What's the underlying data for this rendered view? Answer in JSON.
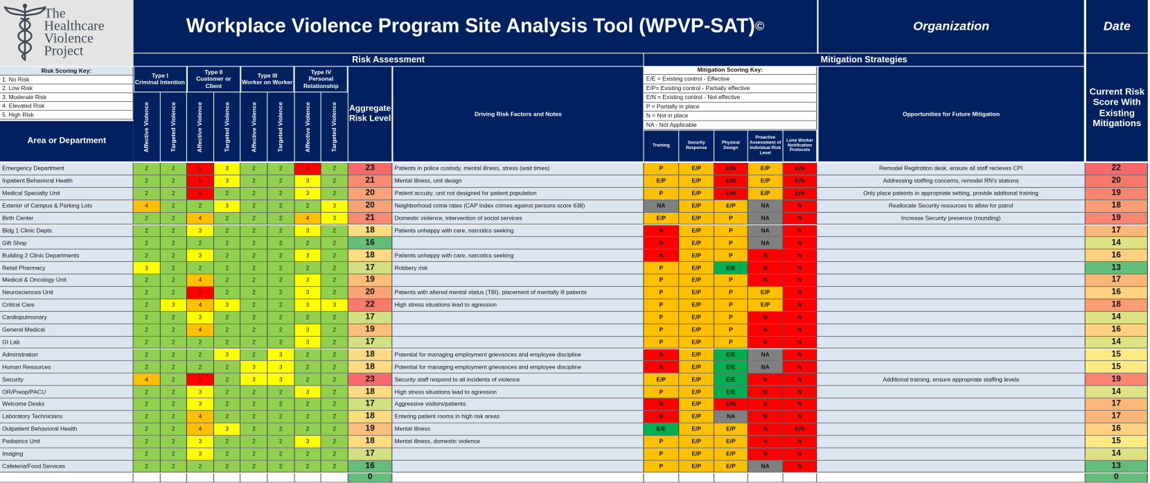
{
  "header": {
    "logo_text": [
      "The",
      "Healthcare",
      "Violence",
      "Project"
    ],
    "title": "Workplace Violence Program Site Analysis Tool (WPVP-SAT)",
    "copyright": "©",
    "organization": "Organization",
    "date": "Date"
  },
  "sections": {
    "risk_assessment": "Risk Assessment",
    "mitigation_strategies": "Mitigation Strategies"
  },
  "risk_key": {
    "title": "Risk Scoring Key:",
    "items": [
      "1. No Risk",
      "2. Low Risk",
      "3. Moderate Risk",
      "4. Elevated Risk",
      "5. High Risk"
    ]
  },
  "mitigation_key": {
    "title": "Mitigation Scoring Key:",
    "items": [
      "E/E = Existing control - Effective",
      "E/P= Existing control - Partially  effective",
      "E/N = Existing control - Not  effective",
      "P = Partially in place",
      "N = Not in place",
      "NA - Not Applicable"
    ]
  },
  "columns": {
    "area": "Area or Department",
    "types": [
      {
        "name": "Type I",
        "desc": "Criminal Intention"
      },
      {
        "name": "Type II",
        "desc": "Customer or Client"
      },
      {
        "name": "Type III",
        "desc": "Worker on Worker"
      },
      {
        "name": "Type IV",
        "desc": "Personal Relationship"
      }
    ],
    "subtypes": [
      "Affective Violence",
      "Targeted Violence"
    ],
    "aggregate": "Aggregate Risk Level",
    "notes": "Driving Risk Factors and Notes",
    "mitigation": [
      "Training",
      "Security Response",
      "Physical Design",
      "Proactive Assessment of Individual Risk Level",
      "Lone Worker Notification Protocols"
    ],
    "opportunities": "Opportunities for Future Mitigation",
    "current": "Current Risk Score With Existing Mitigations"
  },
  "rows": [
    {
      "area": "Emergency Department",
      "scores": [
        2,
        2,
        5,
        3,
        2,
        2,
        5,
        2
      ],
      "aggregate": 23,
      "notes": "Patients in police custody, mental illness, stress (wait times)",
      "mitigation": [
        "P",
        "E/P",
        "E/N",
        "E/P",
        "E/N"
      ],
      "opportunities": "Remodel Regitration desk, ensure all staff recieves CPI",
      "current": 22
    },
    {
      "area": "Inpatient Behavioral Health",
      "scores": [
        2,
        2,
        5,
        3,
        2,
        2,
        3,
        2
      ],
      "aggregate": 21,
      "notes": "Mental illness, unit design",
      "mitigation": [
        "E/P",
        "E/P",
        "E/N",
        "E/P",
        "E/N"
      ],
      "opportunities": "Addressing staffing concerns, remodel RN's stations",
      "current": 20
    },
    {
      "area": "Medical Specialty Unit",
      "scores": [
        2,
        2,
        5,
        2,
        2,
        2,
        3,
        2
      ],
      "aggregate": 20,
      "notes": "Patient accuity, unit not designed for patient population",
      "mitigation": [
        "P",
        "E/P",
        "E/N",
        "E/P",
        "E/N"
      ],
      "opportunities": "Only place pateints in appropriate setting, provide additonal training",
      "current": 19
    },
    {
      "area": "Exterior of Campus & Parking Lots",
      "scores": [
        4,
        2,
        2,
        3,
        2,
        2,
        2,
        3
      ],
      "aggregate": 20,
      "notes": "Neighborhood crime rates (CAP Index crimes against persons score 638)",
      "mitigation": [
        "NA",
        "E/P",
        "E/P",
        "NA",
        "N"
      ],
      "opportunities": "Reallocate Security resources to allow for patrol",
      "current": 18
    },
    {
      "area": "Birth Center",
      "scores": [
        2,
        2,
        4,
        2,
        2,
        2,
        4,
        3
      ],
      "aggregate": 21,
      "notes": "Domestic violence, intervention of social services",
      "mitigation": [
        "E/P",
        "E/P",
        "P",
        "NA",
        "N"
      ],
      "opportunities": "Increase Security presence (rounding)",
      "current": 19
    },
    {
      "area": "Bldg 1 Clinic Depts",
      "scores": [
        2,
        2,
        3,
        2,
        2,
        2,
        3,
        2
      ],
      "aggregate": 18,
      "notes": "Patients unhappy with care, narcotics seeking",
      "mitigation": [
        "N",
        "E/P",
        "P",
        "NA",
        "N"
      ],
      "current": 17
    },
    {
      "area": "Gift Shop",
      "scores": [
        2,
        2,
        2,
        2,
        2,
        2,
        2,
        2
      ],
      "aggregate": 16,
      "mitigation": [
        "N",
        "E/P",
        "P",
        "NA",
        "N"
      ],
      "current": 14
    },
    {
      "area": "Building 2 Clinic Departments",
      "scores": [
        2,
        2,
        3,
        2,
        2,
        2,
        3,
        2
      ],
      "aggregate": 18,
      "notes": "Patients unhappy with care, narcotics seeking",
      "mitigation": [
        "N",
        "E/P",
        "P",
        "N",
        "N"
      ],
      "current": 16
    },
    {
      "area": "Retail Pharmacy",
      "scores": [
        3,
        2,
        2,
        2,
        2,
        2,
        2,
        2
      ],
      "aggregate": 17,
      "notes": "Robbery risk",
      "mitigation": [
        "P",
        "E/P",
        "E/E",
        "N",
        "N"
      ],
      "current": 13
    },
    {
      "area": "Medical & Oncology Unit",
      "scores": [
        2,
        2,
        4,
        2,
        2,
        2,
        3,
        2
      ],
      "aggregate": 19,
      "mitigation": [
        "P",
        "E/P",
        "P",
        "N",
        "N"
      ],
      "current": 17
    },
    {
      "area": "Neurosciences Unit",
      "scores": [
        2,
        2,
        5,
        2,
        2,
        2,
        3,
        2
      ],
      "aggregate": 20,
      "notes": "Patients with altered mental status (TBI), placement of mentally ill patients",
      "mitigation": [
        "P",
        "E/P",
        "P",
        "E/P",
        "N"
      ],
      "current": 16
    },
    {
      "area": "Critical Care",
      "scores": [
        2,
        3,
        4,
        3,
        2,
        2,
        3,
        3
      ],
      "aggregate": 22,
      "notes": "High stress situations lead to agression",
      "mitigation": [
        "P",
        "E/P",
        "P",
        "E/P",
        "N"
      ],
      "current": 18
    },
    {
      "area": "Cardiopulmonary",
      "scores": [
        2,
        2,
        3,
        2,
        2,
        2,
        2,
        2
      ],
      "aggregate": 17,
      "mitigation": [
        "P",
        "E/P",
        "P",
        "N",
        "N"
      ],
      "current": 14
    },
    {
      "area": "General Medical",
      "scores": [
        2,
        2,
        4,
        2,
        2,
        2,
        3,
        2
      ],
      "aggregate": 19,
      "mitigation": [
        "P",
        "E/P",
        "P",
        "N",
        "N"
      ],
      "current": 16
    },
    {
      "area": "GI Lab",
      "scores": [
        2,
        2,
        2,
        2,
        2,
        2,
        3,
        2
      ],
      "aggregate": 17,
      "mitigation": [
        "P",
        "E/P",
        "P",
        "N",
        "N"
      ],
      "current": 14
    },
    {
      "area": "Adminstration",
      "scores": [
        2,
        2,
        2,
        3,
        2,
        3,
        2,
        2
      ],
      "aggregate": 18,
      "notes": "Potential for managing employment grievances and employee discipline",
      "mitigation": [
        "N",
        "E/P",
        "E/E",
        "NA",
        "N"
      ],
      "current": 15
    },
    {
      "area": "Human Resources",
      "scores": [
        2,
        2,
        2,
        2,
        3,
        3,
        2,
        2
      ],
      "aggregate": 18,
      "notes": "Potential for managing employment grievances and employee discipline",
      "mitigation": [
        "N",
        "E/P",
        "E/E",
        "NA",
        "N"
      ],
      "current": 15
    },
    {
      "area": "Security",
      "scores": [
        4,
        2,
        5,
        2,
        3,
        3,
        2,
        2
      ],
      "aggregate": 23,
      "notes": "Security staff respond to all incidents of violence",
      "mitigation": [
        "E/P",
        "E/P",
        "E/E",
        "N",
        "N"
      ],
      "opportunities": "Additional training, ensure appropriate staffing levels",
      "current": 19
    },
    {
      "area": "OR/Preop/PACU",
      "scores": [
        2,
        2,
        3,
        2,
        2,
        2,
        3,
        2
      ],
      "aggregate": 18,
      "notes": "High stress situations lead to agression",
      "mitigation": [
        "P",
        "E/P",
        "E/E",
        "N",
        "N"
      ],
      "current": 14
    },
    {
      "area": "Welcome Desks",
      "scores": [
        2,
        2,
        3,
        2,
        2,
        2,
        2,
        2
      ],
      "aggregate": 17,
      "notes": "Aggressive visitors/patients",
      "mitigation": [
        "N",
        "E/P",
        "E/N",
        "N",
        "N"
      ],
      "current": 17
    },
    {
      "area": "Laboratory Technicians",
      "scores": [
        2,
        2,
        4,
        2,
        2,
        2,
        2,
        2
      ],
      "aggregate": 18,
      "notes": "Entering patient rooms in high risk areas",
      "mitigation": [
        "N",
        "E/P",
        "NA",
        "N",
        "N"
      ],
      "current": 17
    },
    {
      "area": "Outpatient Behavioral Health",
      "scores": [
        2,
        2,
        4,
        3,
        2,
        2,
        2,
        2
      ],
      "aggregate": 19,
      "notes": "Mental illness",
      "mitigation": [
        "E/E",
        "E/P",
        "E/P",
        "N",
        "E/N"
      ],
      "current": 16
    },
    {
      "area": "Pediatrics Unit",
      "scores": [
        2,
        2,
        3,
        2,
        2,
        2,
        3,
        2
      ],
      "aggregate": 18,
      "notes": "Mental illness, domestic violence",
      "mitigation": [
        "P",
        "E/P",
        "E/P",
        "N",
        "N"
      ],
      "current": 15
    },
    {
      "area": "Imaging",
      "scores": [
        2,
        2,
        3,
        2,
        2,
        2,
        2,
        2
      ],
      "aggregate": 17,
      "mitigation": [
        "P",
        "E/P",
        "E/P",
        "N",
        "N"
      ],
      "current": 14
    },
    {
      "area": "Cafeteria/Food Services",
      "scores": [
        2,
        2,
        2,
        2,
        2,
        2,
        2,
        2
      ],
      "aggregate": 16,
      "mitigation": [
        "P",
        "E/P",
        "E/P",
        "NA",
        "N"
      ],
      "current": 13
    }
  ],
  "totals": {
    "aggregate": 0,
    "current": 0
  },
  "colors": {
    "risk": {
      "2": "#92d050",
      "3": "#ffff00",
      "4": "#ffc000",
      "5": "#ff0000"
    },
    "mitigation": {
      "P": "#ffc000",
      "E/P": "#ffc000",
      "E/N": "#ff0000",
      "N": "#ff0000",
      "NA": "#808080",
      "E/E": "#00b050"
    },
    "aggregate": {
      "0": "#63be7b",
      "16": "#63be7b",
      "17": "#d3e082",
      "18": "#fedb81",
      "19": "#fcbf7b",
      "20": "#fba276",
      "21": "#f98971",
      "22": "#f8796e",
      "23": "#f8696b"
    },
    "current": {
      "0": "#63be7b",
      "13": "#63be7b",
      "14": "#dfe283",
      "15": "#feea83",
      "16": "#fdd17f",
      "17": "#fbb77a",
      "18": "#fa9d75",
      "19": "#f98570",
      "20": "#f8776d",
      "22": "#f8696b"
    }
  }
}
